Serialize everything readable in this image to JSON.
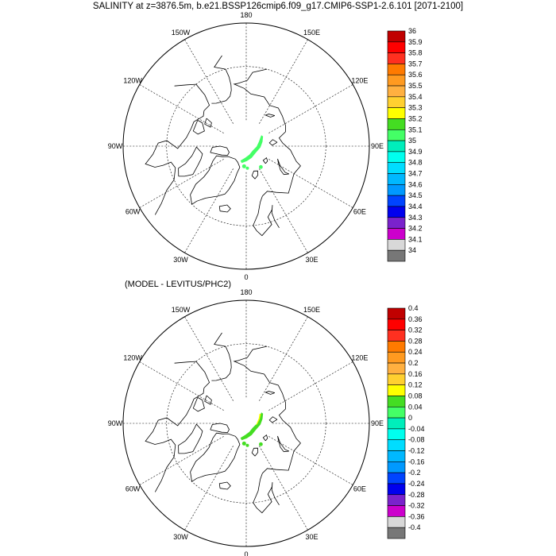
{
  "title": "SALINITY at z=3876.5m, b.e21.BSSP126cmip6.f09_g17.CMIP6-SSP1-2.6.101 [2071-2100]",
  "subtitle": "(MODEL - LEVITUS/PHC2)",
  "chart_data": [
    {
      "type": "heatmap",
      "projection": "north polar stereographic",
      "variable": "SALINITY",
      "longitude_labels": [
        "180",
        "150E",
        "120E",
        "90E",
        "60E",
        "30E",
        "0",
        "30W",
        "60W",
        "90W",
        "120W",
        "150W"
      ],
      "colorbar": {
        "levels": [
          "36",
          "35.9",
          "35.8",
          "35.7",
          "35.6",
          "35.5",
          "35.4",
          "35.3",
          "35.2",
          "35.1",
          "35",
          "34.9",
          "34.8",
          "34.7",
          "34.6",
          "34.5",
          "34.4",
          "34.3",
          "34.2",
          "34.1",
          "34"
        ],
        "colors": [
          "#c00000",
          "#ff0000",
          "#ff3020",
          "#ff7a00",
          "#ff9a20",
          "#ffb040",
          "#ffd030",
          "#ffff00",
          "#44dd22",
          "#44ff66",
          "#00eebb",
          "#00ffee",
          "#00ddff",
          "#00b8ff",
          "#0099ff",
          "#0044ff",
          "#0000ee",
          "#7a22cc",
          "#cc00cc",
          "#d8d8d8",
          "#777777"
        ]
      },
      "field": {
        "description": "deep-water salinity in the Eurasian Basin along the Gakkel Ridge",
        "dominant_value_range": [
          35.0,
          35.1
        ]
      }
    },
    {
      "type": "heatmap",
      "projection": "north polar stereographic",
      "variable": "SALINITY difference",
      "longitude_labels": [
        "180",
        "150E",
        "120E",
        "90E",
        "60E",
        "30E",
        "0",
        "30W",
        "60W",
        "90W",
        "120W",
        "150W"
      ],
      "colorbar": {
        "levels": [
          "0.4",
          "0.36",
          "0.32",
          "0.28",
          "0.24",
          "0.2",
          "0.16",
          "0.12",
          "0.08",
          "0.04",
          "0",
          "-0.04",
          "-0.08",
          "-0.12",
          "-0.16",
          "-0.2",
          "-0.24",
          "-0.28",
          "-0.32",
          "-0.36",
          "-0.4"
        ],
        "colors": [
          "#c00000",
          "#ff0000",
          "#ff3020",
          "#ff7a00",
          "#ff9a20",
          "#ffb040",
          "#ffd030",
          "#ffff00",
          "#44dd22",
          "#44ff66",
          "#00eebb",
          "#00ffee",
          "#00ddff",
          "#00b8ff",
          "#0099ff",
          "#0044ff",
          "#0000ee",
          "#7a22cc",
          "#cc00cc",
          "#d8d8d8",
          "#777777"
        ]
      },
      "field": {
        "description": "model minus climatology along the Gakkel Ridge",
        "dominant_value_range": [
          0.04,
          0.12
        ]
      }
    }
  ]
}
